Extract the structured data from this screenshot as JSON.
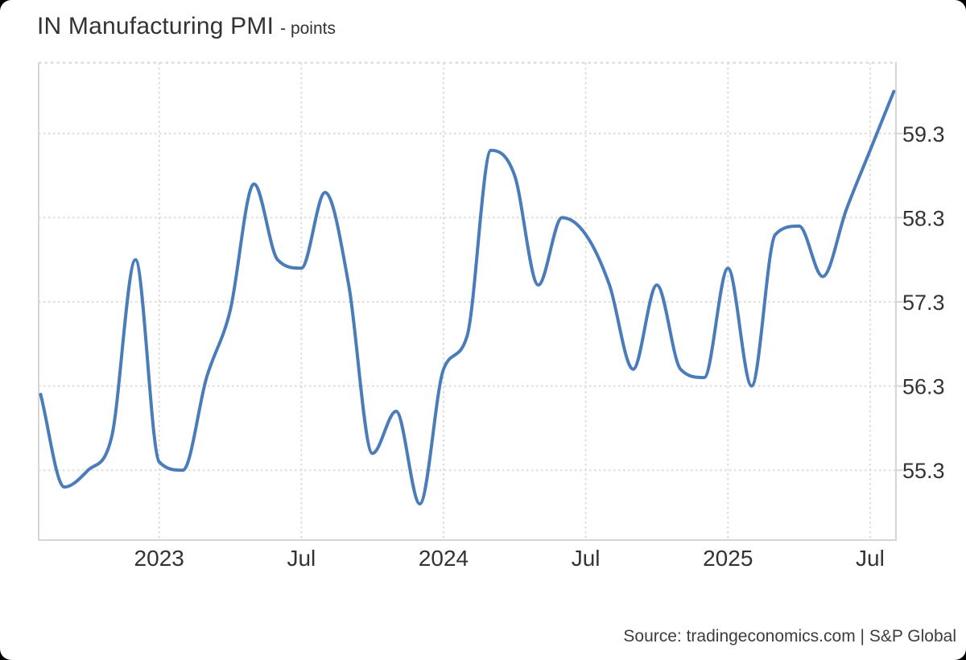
{
  "header": {
    "title": "IN Manufacturing PMI",
    "subtitle": "- points"
  },
  "footer": {
    "source": "Source: tradingeconomics.com | S&P Global"
  },
  "chart_data": {
    "type": "line",
    "title": "IN Manufacturing PMI",
    "ylabel": "points",
    "line_color": "#4a7cba",
    "grid_color": "#dcdcdc",
    "axis_color": "#d6d6d6",
    "label_color": "#333333",
    "grid": "dotted",
    "legend": "none",
    "ylim": [
      54.47,
      60.14
    ],
    "y_ticks": [
      "59.3",
      "58.3",
      "57.3",
      "56.3",
      "55.3"
    ],
    "x_ticks": [
      {
        "label": "2023",
        "index": 5
      },
      {
        "label": "Jul",
        "index": 11
      },
      {
        "label": "2024",
        "index": 17
      },
      {
        "label": "Jul",
        "index": 23
      },
      {
        "label": "2025",
        "index": 29
      },
      {
        "label": "Jul",
        "index": 35
      }
    ],
    "x": [
      "Aug 2022",
      "Sep 2022",
      "Oct 2022",
      "Nov 2022",
      "Dec 2022",
      "Jan 2023",
      "Feb 2023",
      "Mar 2023",
      "Apr 2023",
      "May 2023",
      "Jun 2023",
      "Jul 2023",
      "Aug 2023",
      "Sep 2023",
      "Oct 2023",
      "Nov 2023",
      "Dec 2023",
      "Jan 2024",
      "Feb 2024",
      "Mar 2024",
      "Apr 2024",
      "May 2024",
      "Jun 2024",
      "Jul 2024",
      "Aug 2024",
      "Sep 2024",
      "Oct 2024",
      "Nov 2024",
      "Dec 2024",
      "Jan 2025",
      "Feb 2025",
      "Mar 2025",
      "Apr 2025",
      "May 2025",
      "Jun 2025",
      "Jul 2025",
      "Aug 2025"
    ],
    "values": [
      56.2,
      55.1,
      55.3,
      55.7,
      57.8,
      55.4,
      55.3,
      56.4,
      57.2,
      58.7,
      57.8,
      57.7,
      58.6,
      57.5,
      55.5,
      56.0,
      54.9,
      56.5,
      56.9,
      59.1,
      58.8,
      57.5,
      58.3,
      58.1,
      57.5,
      56.5,
      57.5,
      56.5,
      56.4,
      57.7,
      56.3,
      58.1,
      58.2,
      57.6,
      58.4,
      59.1,
      59.8
    ]
  }
}
